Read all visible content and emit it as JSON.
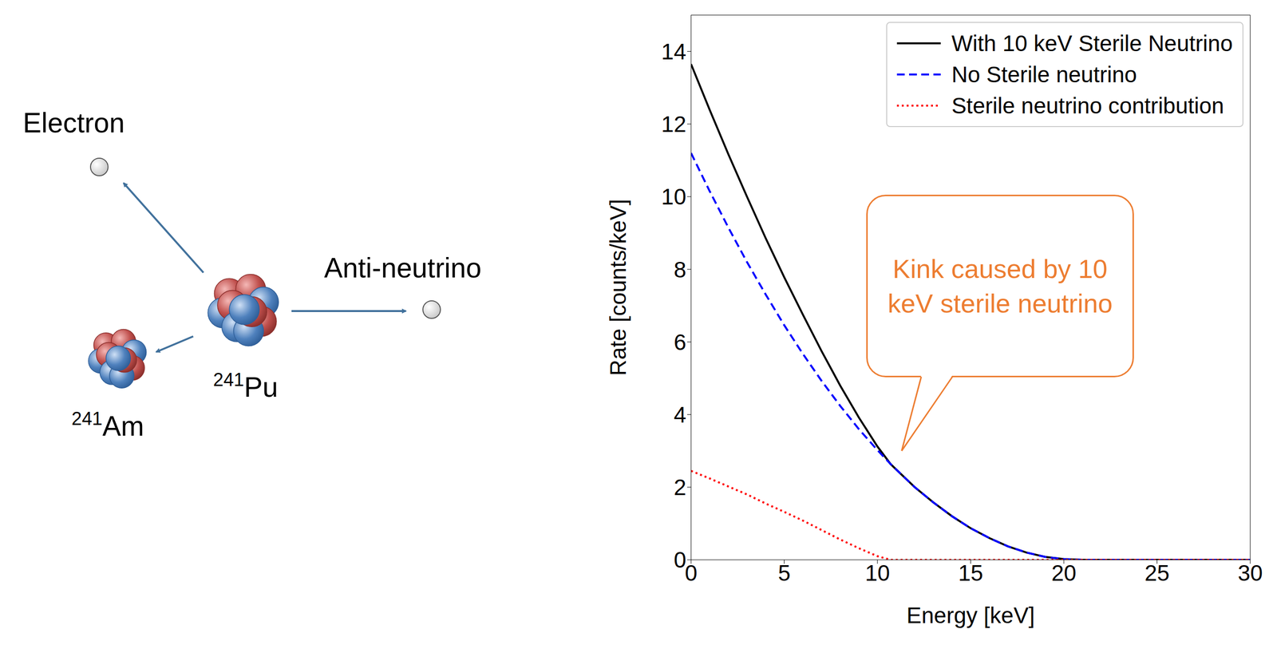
{
  "chart_data": {
    "type": "line",
    "x": [
      0,
      1,
      2,
      3,
      4,
      5,
      6,
      7,
      8,
      9,
      10,
      10.7,
      11,
      12,
      13,
      14,
      15,
      16,
      17,
      18,
      19,
      20,
      21,
      22,
      23,
      24,
      25,
      26,
      27,
      28,
      29,
      30
    ],
    "series": [
      {
        "name": "With 10 keV Sterile Neutrino",
        "color": "#000000",
        "line_style": "solid",
        "values": [
          13.65,
          12.39,
          11.17,
          10.0,
          8.86,
          7.78,
          6.75,
          5.75,
          4.8,
          3.92,
          3.12,
          2.64,
          2.49,
          2.0,
          1.58,
          1.2,
          0.87,
          0.6,
          0.37,
          0.2,
          0.08,
          0.02,
          0,
          0,
          0,
          0,
          0,
          0,
          0,
          0,
          0,
          0
        ]
      },
      {
        "name": "No Sterile neutrino",
        "color": "#0000ff",
        "line_style": "dashed",
        "values": [
          11.2,
          10.15,
          9.15,
          8.2,
          7.31,
          6.46,
          5.67,
          4.93,
          4.24,
          3.6,
          3.02,
          2.64,
          2.49,
          2.0,
          1.58,
          1.2,
          0.87,
          0.6,
          0.37,
          0.2,
          0.08,
          0.02,
          0,
          0,
          0,
          0,
          0,
          0,
          0,
          0,
          0,
          0
        ]
      },
      {
        "name": "Sterile neutrino contribution",
        "color": "#ff0000",
        "line_style": "dotted",
        "values": [
          2.45,
          2.24,
          2.02,
          1.8,
          1.55,
          1.32,
          1.08,
          0.82,
          0.56,
          0.32,
          0.1,
          0,
          0,
          0,
          0,
          0,
          0,
          0,
          0,
          0,
          0,
          0,
          0,
          0,
          0,
          0,
          0,
          0,
          0,
          0,
          0,
          0
        ]
      }
    ],
    "xlabel": "Energy [keV]",
    "ylabel": "Rate [counts/keV]",
    "xlim": [
      0,
      30
    ],
    "xticks": [
      0,
      5,
      10,
      15,
      20,
      25,
      30
    ],
    "ylim": [
      0,
      15
    ],
    "yticks": [
      0,
      2,
      4,
      6,
      8,
      10,
      12,
      14
    ],
    "grid": false,
    "legend": "upper right",
    "annotations": [
      {
        "text": "Kink caused by 10 keV sterile neutrino",
        "point": [
          11.3,
          3.0
        ],
        "color": "#ED7D31"
      }
    ]
  },
  "diagram": {
    "particles": [
      {
        "label": "Electron"
      },
      {
        "label": "Anti-neutrino"
      }
    ],
    "nuclei": [
      {
        "mass_number": 241,
        "symbol": "Pu"
      },
      {
        "mass_number": 241,
        "symbol": "Am"
      }
    ]
  }
}
